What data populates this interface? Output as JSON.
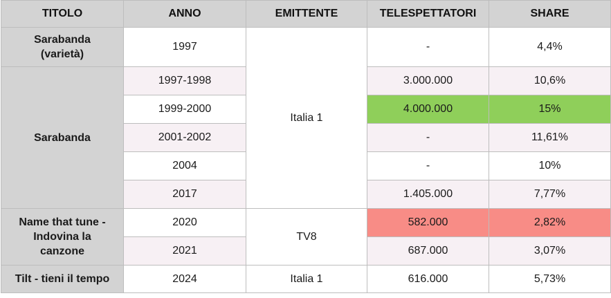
{
  "headers": [
    "TITOLO",
    "ANNO",
    "EMITTENTE",
    "TELESPETTATORI",
    "SHARE"
  ],
  "titles": {
    "sarabanda_varieta": "Sarabanda (varietà)",
    "sarabanda": "Sarabanda",
    "name_that_tune": "Name that tune - Indovina la canzone",
    "tilt": "Tilt - tieni il tempo"
  },
  "broadcasters": {
    "italia1_main": "Italia 1",
    "tv8": "TV8",
    "italia1_last": "Italia 1"
  },
  "rows": [
    {
      "anno": "1997",
      "telespettatori": "-",
      "share": "4,4%"
    },
    {
      "anno": "1997-1998",
      "telespettatori": "3.000.000",
      "share": "10,6%"
    },
    {
      "anno": "1999-2000",
      "telespettatori": "4.000.000",
      "share": "15%"
    },
    {
      "anno": "2001-2002",
      "telespettatori": "-",
      "share": "11,61%"
    },
    {
      "anno": "2004",
      "telespettatori": "-",
      "share": "10%"
    },
    {
      "anno": "2017",
      "telespettatori": "1.405.000",
      "share": "7,77%"
    },
    {
      "anno": "2020",
      "telespettatori": "582.000",
      "share": "2,82%"
    },
    {
      "anno": "2021",
      "telespettatori": "687.000",
      "share": "3,07%"
    },
    {
      "anno": "2024",
      "telespettatori": "616.000",
      "share": "5,73%"
    }
  ],
  "colors": {
    "header_bg": "#d3d3d3",
    "highlight_best": "#8fcf5a",
    "highlight_worst": "#f88c86",
    "alt_row": "#f7f0f4"
  }
}
